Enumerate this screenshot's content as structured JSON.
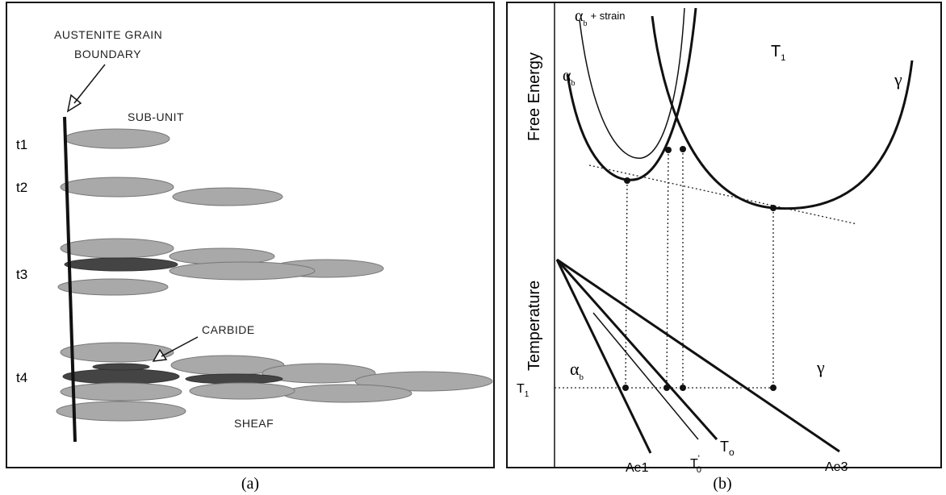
{
  "panel_a": {
    "boundary_label": [
      "AUSTENITE GRAIN",
      "BOUNDARY"
    ],
    "sub_unit": "SUB-UNIT",
    "carbide": "CARBIDE",
    "sheaf": "SHEAF",
    "times": [
      "t1",
      "t2",
      "t3",
      "t4"
    ],
    "caption": "(a)"
  },
  "panel_b": {
    "free_energy": "Free Energy",
    "temperature": "Temperature",
    "alpha_strain": {
      "symbol": "α",
      "sub": "b",
      "text": "+ strain"
    },
    "alpha_top": {
      "symbol": "α",
      "sub": "b"
    },
    "t1_top": {
      "symbol": "T",
      "sub": "1"
    },
    "gamma_top": "γ",
    "alpha_bottom": {
      "symbol": "α",
      "sub": "b"
    },
    "gamma_bottom": "γ",
    "t1_axis": {
      "symbol": "T",
      "sub": "1"
    },
    "ae1": "Ae1",
    "t0_prime": {
      "symbol": "T",
      "sup": "'",
      "sub": "0"
    },
    "t0": {
      "symbol": "T",
      "sub": "o"
    },
    "ae3": "Ae3",
    "caption": "(b)"
  }
}
